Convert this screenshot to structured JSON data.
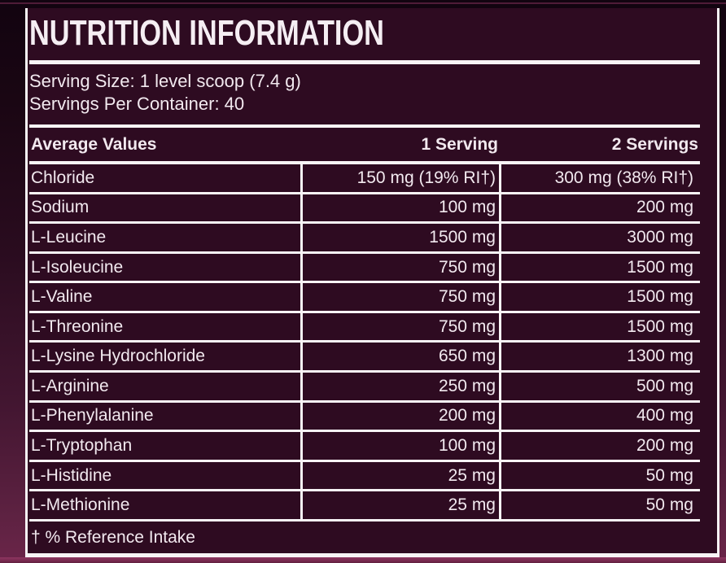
{
  "panel": {
    "title": "NUTRITION INFORMATION",
    "serving_size": "Serving Size: 1 level scoop (7.4 g)",
    "servings_per_container": "Servings Per Container: 40",
    "footnote": "† % Reference Intake"
  },
  "table": {
    "columns": [
      "Average Values",
      "1 Serving",
      "2 Servings"
    ],
    "rows": [
      {
        "name": "Chloride",
        "serving1": "150 mg (19% RI†)",
        "serving2": "300 mg (38% RI†)"
      },
      {
        "name": "Sodium",
        "serving1": "100 mg",
        "serving2": "200 mg"
      },
      {
        "name": "L-Leucine",
        "serving1": "1500 mg",
        "serving2": "3000 mg"
      },
      {
        "name": "L-Isoleucine",
        "serving1": "750 mg",
        "serving2": "1500 mg"
      },
      {
        "name": "L-Valine",
        "serving1": "750 mg",
        "serving2": "1500 mg"
      },
      {
        "name": "L-Threonine",
        "serving1": "750 mg",
        "serving2": "1500 mg"
      },
      {
        "name": "L-Lysine Hydrochloride",
        "serving1": "650 mg",
        "serving2": "1300 mg"
      },
      {
        "name": "L-Arginine",
        "serving1": "250 mg",
        "serving2": "500 mg"
      },
      {
        "name": "L-Phenylalanine",
        "serving1": "200 mg",
        "serving2": "400 mg"
      },
      {
        "name": "L-Tryptophan",
        "serving1": "100 mg",
        "serving2": "200 mg"
      },
      {
        "name": "L-Histidine",
        "serving1": "25 mg",
        "serving2": "50 mg"
      },
      {
        "name": "L-Methionine",
        "serving1": "25 mg",
        "serving2": "50 mg"
      }
    ]
  },
  "colors": {
    "panel_background": "#2e0b21",
    "border_white": "#f8f4f6",
    "text": "#f2e9ef",
    "outer_top": "#120410",
    "outer_bottom": "#6b2549",
    "top_accent_line": "#4f1c38",
    "bottom_band": "#7a2a50"
  }
}
